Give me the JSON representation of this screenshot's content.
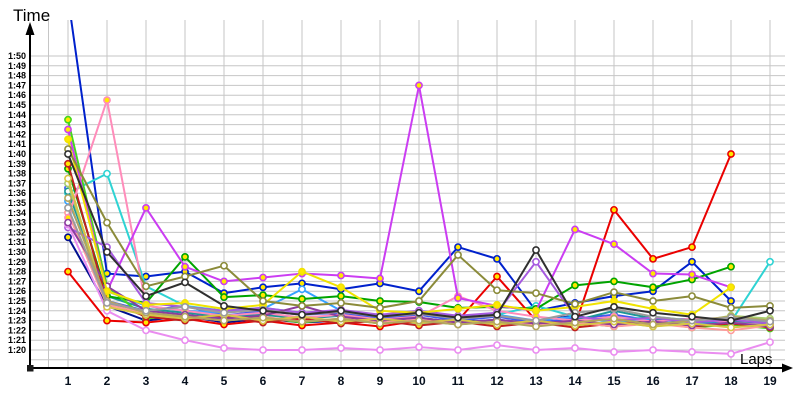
{
  "chart_data": {
    "type": "line",
    "title": "",
    "ylabel": "Time",
    "xlabel": "Laps",
    "grid": true,
    "legend": "none",
    "x_ticks": [
      1,
      2,
      3,
      4,
      5,
      6,
      7,
      8,
      9,
      10,
      11,
      12,
      13,
      14,
      15,
      16,
      17,
      18,
      19
    ],
    "y_tick_labels": [
      "1:50",
      "1:49",
      "1:48",
      "1:47",
      "1:46",
      "1:45",
      "1:44",
      "1:43",
      "1:42",
      "1:41",
      "1:40",
      "1:39",
      "1:38",
      "1:37",
      "1:36",
      "1:35",
      "1:34",
      "1:33",
      "1:32",
      "1:31",
      "1:30",
      "1:29",
      "1:28",
      "1:27",
      "1:26",
      "1:25",
      "1:24",
      "1:23",
      "1:22",
      "1:21",
      "1:20"
    ],
    "y_tick_seconds": [
      110,
      109,
      108,
      107,
      106,
      105,
      104,
      103,
      102,
      101,
      100,
      99,
      98,
      97,
      96,
      95,
      94,
      93,
      92,
      91,
      90,
      89,
      88,
      87,
      86,
      85,
      84,
      83,
      82,
      81,
      80
    ],
    "ylim_seconds": [
      79,
      111
    ],
    "xlim_laps": [
      1,
      19
    ],
    "marker_fill_yellow": "#ffe800",
    "marker_fill_white": "#ffffff",
    "series": [
      {
        "name": "blue",
        "color": "#0021cc",
        "marker": "#ffe800",
        "values": [
          116,
          87.8,
          87.5,
          88,
          85.8,
          86.4,
          86.8,
          86.2,
          86.8,
          86,
          90.5,
          89.3,
          84,
          84.8,
          85.5,
          86,
          89,
          85,
          null
        ]
      },
      {
        "name": "navy",
        "color": "#000f8f",
        "marker": "#ffe800",
        "values": [
          91.5,
          84.5,
          83,
          83.5,
          82.8,
          83.2,
          82.8,
          83,
          83.4,
          82.8,
          83.2,
          82.6,
          83,
          83.5,
          82.8,
          83,
          82.5,
          82.8,
          82.5
        ]
      },
      {
        "name": "royal-blue",
        "color": "#4257f0",
        "marker": "#ffffff",
        "values": [
          96.5,
          85,
          84,
          84.5,
          83.5,
          84,
          83.6,
          83.8,
          83.2,
          83.6,
          83,
          83.4,
          82.8,
          83.2,
          83.6,
          83,
          83.2,
          82.8,
          83
        ]
      },
      {
        "name": "dodger-blue",
        "color": "#35a2ff",
        "marker": "#ffffff",
        "values": [
          95.2,
          86,
          84.5,
          84,
          83.8,
          84.2,
          86.2,
          84,
          83.4,
          83.8,
          83.2,
          83.6,
          83,
          83.4,
          82.8,
          83.2,
          82.6,
          83,
          82.8
        ]
      },
      {
        "name": "cyan",
        "color": "#2ed3d3",
        "marker": "#ffffff",
        "values": [
          96,
          98,
          86.5,
          84.5,
          84,
          84.3,
          83.8,
          84,
          83.5,
          83.8,
          83.3,
          83.6,
          84.5,
          83.4,
          83,
          83.4,
          83,
          82.9,
          89
        ]
      },
      {
        "name": "teal",
        "color": "#1d9696",
        "marker": "#ffffff",
        "values": [
          96.2,
          85.5,
          84.2,
          83.8,
          83.4,
          83.6,
          83.2,
          83.5,
          83,
          83.3,
          82.8,
          83.1,
          82.7,
          83,
          84,
          83.2,
          82.8,
          83,
          82.6
        ]
      },
      {
        "name": "green",
        "color": "#00a400",
        "marker": "#ffe800",
        "values": [
          98.5,
          85.5,
          84.8,
          89.5,
          85.4,
          85.6,
          85.2,
          85.5,
          85,
          84.9,
          84.3,
          84.4,
          84.2,
          86.6,
          87,
          86.4,
          87.2,
          88.5,
          null
        ]
      },
      {
        "name": "lime",
        "color": "#45d71c",
        "marker": "#ffe800",
        "values": [
          103.5,
          86.5,
          83.2,
          83.6,
          83,
          83.3,
          82.8,
          83.2,
          82.7,
          83,
          82.6,
          83,
          82.5,
          82.8,
          82.4,
          82.8,
          82.3,
          82.6,
          82.2
        ]
      },
      {
        "name": "pale-green",
        "color": "#a9cf70",
        "marker": "#ffffff",
        "values": [
          97,
          84.8,
          83.5,
          83.2,
          83.6,
          83,
          83.4,
          82.8,
          83.2,
          82.7,
          83,
          82.6,
          83,
          82.5,
          82.9,
          82.4,
          82.8,
          83.5,
          83.2
        ]
      },
      {
        "name": "red",
        "color": "#ea0000",
        "marker": "#ffe800",
        "values": [
          88,
          83,
          82.8,
          83.2,
          82.6,
          83,
          82.5,
          82.8,
          82.4,
          83,
          83,
          87.5,
          83,
          82.5,
          94.3,
          89.3,
          90.5,
          100,
          null
        ]
      },
      {
        "name": "dark-red",
        "color": "#c02020",
        "marker": "#ffe800",
        "values": [
          99,
          85,
          83.4,
          83,
          83.4,
          82.8,
          83.2,
          82.7,
          83,
          82.5,
          82.9,
          82.4,
          82.8,
          82.3,
          82.7,
          82.9,
          82.4,
          82.7,
          82.3
        ]
      },
      {
        "name": "salmon",
        "color": "#ff9b9b",
        "marker": "#ffffff",
        "values": [
          94,
          84.6,
          83.8,
          83.4,
          83,
          83.4,
          82.9,
          83.2,
          82.8,
          83.1,
          82.6,
          83,
          82.5,
          82.8,
          82.4,
          82.7,
          82.3,
          82,
          82.5
        ]
      },
      {
        "name": "pink",
        "color": "#ff8cba",
        "marker": "#ffe800",
        "values": [
          93.5,
          105.5,
          84.5,
          84,
          83.5,
          83.8,
          83.3,
          83.6,
          83.1,
          83.4,
          85.5,
          84,
          83.4,
          83,
          83.4,
          82.9,
          83.2,
          82.8,
          82.5
        ]
      },
      {
        "name": "magenta",
        "color": "#cb3df2",
        "marker": "#ffe800",
        "values": [
          102.5,
          86,
          94.5,
          88.5,
          87,
          87.4,
          87.8,
          87.6,
          87.3,
          107,
          85.3,
          84.5,
          84,
          92.3,
          90.8,
          87.8,
          87.7,
          86.4,
          null
        ]
      },
      {
        "name": "violet",
        "color": "#a65ae0",
        "marker": "#ffffff",
        "values": [
          92.5,
          90.5,
          84.8,
          84.4,
          84,
          84.3,
          83.8,
          84.1,
          83.6,
          84,
          83.5,
          83.8,
          89,
          83.4,
          83,
          83.3,
          82.8,
          83.1,
          82.7
        ]
      },
      {
        "name": "plum",
        "color": "#ea8df0",
        "marker": "#ffffff",
        "values": [
          92.8,
          84,
          82,
          81,
          80.2,
          80,
          80,
          80.2,
          80,
          80.3,
          80,
          80.5,
          80,
          80.2,
          79.8,
          80,
          79.8,
          79.6,
          80.8
        ]
      },
      {
        "name": "purple",
        "color": "#8b3d9e",
        "marker": "#ffffff",
        "values": [
          93,
          86.5,
          84,
          83.6,
          83.2,
          83.5,
          84.5,
          83.4,
          83,
          83.3,
          82.8,
          83.1,
          82.7,
          83,
          82.6,
          82.9,
          82.5,
          82.8,
          82.4
        ]
      },
      {
        "name": "yellow",
        "color": "#f0e300",
        "marker": "#ffe800",
        "values": [
          101.5,
          86,
          84.6,
          84.8,
          84.2,
          84.6,
          88,
          86.4,
          84,
          83.8,
          84.2,
          84.6,
          84,
          84.4,
          85,
          84.2,
          83.6,
          86.4,
          null
        ]
      },
      {
        "name": "gold",
        "color": "#d6c545",
        "marker": "#ffffff",
        "values": [
          97.5,
          84.4,
          83.6,
          83.2,
          83.6,
          83,
          83.4,
          82.9,
          83.2,
          82.8,
          83.1,
          82.6,
          83,
          82.5,
          82.9,
          82.4,
          82.7,
          82.3,
          82.6
        ]
      },
      {
        "name": "olive",
        "color": "#8b8b3a",
        "marker": "#ffffff",
        "values": [
          100.5,
          93,
          86.5,
          87.5,
          88.6,
          85,
          84.5,
          84.8,
          84.3,
          85,
          89.7,
          86.1,
          85.8,
          84.7,
          85.9,
          85,
          85.5,
          84.3,
          84.5
        ]
      },
      {
        "name": "dark-khaki",
        "color": "#b3a55e",
        "marker": "#ffffff",
        "values": [
          95.5,
          85,
          83.8,
          83.4,
          83,
          83.3,
          82.9,
          83.2,
          82.7,
          83,
          82.6,
          82.9,
          82.4,
          82.8,
          83.2,
          82.6,
          83,
          83.4,
          83
        ]
      },
      {
        "name": "gray",
        "color": "#9b9b9b",
        "marker": "#ffffff",
        "values": [
          94.5,
          84.8,
          84,
          84.4,
          83.8,
          84.1,
          83.6,
          83.9,
          83.4,
          83.7,
          83.2,
          83.5,
          83,
          83.8,
          84.2,
          83.4,
          83,
          83.3,
          82.9
        ]
      },
      {
        "name": "black",
        "color": "#2f2f2f",
        "marker": "#ffffff",
        "values": [
          100,
          90,
          85.5,
          86.9,
          84.5,
          84,
          83.6,
          84,
          83.4,
          83.8,
          83.3,
          83.6,
          90.2,
          83.4,
          84.4,
          83.8,
          83.4,
          83,
          84
        ]
      }
    ]
  },
  "style": {
    "grid_color": "#c6c6c6",
    "axis_color": "#000000",
    "background": "#ffffff"
  }
}
